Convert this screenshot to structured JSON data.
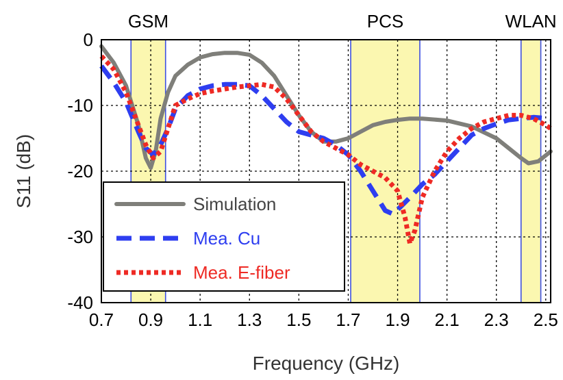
{
  "chart_data": {
    "type": "line",
    "title": "",
    "xlabel": "Frequency (GHz)",
    "ylabel": "S11 (dB)",
    "xlim": [
      0.7,
      2.52
    ],
    "ylim": [
      -40,
      0
    ],
    "grid": true,
    "x_ticks": [
      0.7,
      0.9,
      1.1,
      1.3,
      1.5,
      1.7,
      1.9,
      2.1,
      2.3,
      2.5
    ],
    "x_tick_labels": [
      "0.7",
      "0.9",
      "1.1",
      "1.3",
      "1.5",
      "1.7",
      "1.9",
      "2.1",
      "2.3",
      "2.5"
    ],
    "y_ticks": [
      0,
      -10,
      -20,
      -30,
      -40
    ],
    "y_tick_labels": [
      "0",
      "-10",
      "-20",
      "-30",
      "-40"
    ],
    "bands": [
      {
        "label": "GSM",
        "from": 0.82,
        "to": 0.96,
        "color": "#fbf7b0"
      },
      {
        "label": "PCS",
        "from": 1.71,
        "to": 1.99,
        "color": "#fbf7b0"
      },
      {
        "label": "WLAN",
        "from": 2.4,
        "to": 2.48,
        "color": "#fbf7b0"
      }
    ],
    "legend_position": "lower-left",
    "series": [
      {
        "name": "Simulation",
        "color": "#7f7f7a",
        "style": "solid",
        "points": [
          [
            0.7,
            -1
          ],
          [
            0.75,
            -3.5
          ],
          [
            0.8,
            -7
          ],
          [
            0.85,
            -13
          ],
          [
            0.88,
            -18
          ],
          [
            0.9,
            -19.5
          ],
          [
            0.92,
            -17
          ],
          [
            0.94,
            -12
          ],
          [
            0.97,
            -8
          ],
          [
            1.0,
            -5.5
          ],
          [
            1.05,
            -3.8
          ],
          [
            1.1,
            -2.7
          ],
          [
            1.15,
            -2.2
          ],
          [
            1.2,
            -2.0
          ],
          [
            1.25,
            -2.0
          ],
          [
            1.3,
            -2.3
          ],
          [
            1.35,
            -3.5
          ],
          [
            1.4,
            -5.5
          ],
          [
            1.45,
            -8.5
          ],
          [
            1.5,
            -11.5
          ],
          [
            1.55,
            -14
          ],
          [
            1.6,
            -15.5
          ],
          [
            1.65,
            -15.5
          ],
          [
            1.7,
            -15
          ],
          [
            1.75,
            -14
          ],
          [
            1.8,
            -13
          ],
          [
            1.85,
            -12.5
          ],
          [
            1.9,
            -12.2
          ],
          [
            1.95,
            -12
          ],
          [
            2.0,
            -12
          ],
          [
            2.1,
            -12.3
          ],
          [
            2.2,
            -13.2
          ],
          [
            2.3,
            -15
          ],
          [
            2.35,
            -16.5
          ],
          [
            2.4,
            -18
          ],
          [
            2.43,
            -18.8
          ],
          [
            2.47,
            -18.5
          ],
          [
            2.52,
            -17
          ]
        ]
      },
      {
        "name": "Mea. Cu",
        "color": "#2e3ef0",
        "style": "dashed",
        "points": [
          [
            0.7,
            -4
          ],
          [
            0.75,
            -6.5
          ],
          [
            0.8,
            -9.5
          ],
          [
            0.85,
            -14
          ],
          [
            0.88,
            -16.5
          ],
          [
            0.91,
            -17.5
          ],
          [
            0.94,
            -16
          ],
          [
            0.97,
            -13.5
          ],
          [
            1.0,
            -10.5
          ],
          [
            1.05,
            -8.5
          ],
          [
            1.1,
            -7.5
          ],
          [
            1.15,
            -7
          ],
          [
            1.2,
            -6.8
          ],
          [
            1.25,
            -6.8
          ],
          [
            1.3,
            -7
          ],
          [
            1.35,
            -8.5
          ],
          [
            1.4,
            -10.5
          ],
          [
            1.45,
            -12.5
          ],
          [
            1.5,
            -14
          ],
          [
            1.55,
            -14.5
          ],
          [
            1.6,
            -15
          ],
          [
            1.65,
            -16
          ],
          [
            1.7,
            -17.5
          ],
          [
            1.75,
            -20
          ],
          [
            1.8,
            -23
          ],
          [
            1.85,
            -26
          ],
          [
            1.88,
            -26.5
          ],
          [
            1.91,
            -25.5
          ],
          [
            1.95,
            -24
          ],
          [
            2.0,
            -22
          ],
          [
            2.05,
            -20.5
          ],
          [
            2.1,
            -18.5
          ],
          [
            2.15,
            -16.5
          ],
          [
            2.2,
            -14.5
          ],
          [
            2.25,
            -13.5
          ],
          [
            2.3,
            -12.8
          ],
          [
            2.35,
            -12.2
          ],
          [
            2.4,
            -12
          ],
          [
            2.45,
            -11.8
          ],
          [
            2.52,
            -12
          ]
        ]
      },
      {
        "name": "Mea. E-fiber",
        "color": "#ee2a24",
        "style": "dotted",
        "points": [
          [
            0.7,
            -2.5
          ],
          [
            0.75,
            -4.5
          ],
          [
            0.8,
            -8
          ],
          [
            0.85,
            -13
          ],
          [
            0.88,
            -16
          ],
          [
            0.91,
            -18
          ],
          [
            0.94,
            -17
          ],
          [
            0.97,
            -13.5
          ],
          [
            1.0,
            -10
          ],
          [
            1.05,
            -9
          ],
          [
            1.1,
            -8.2
          ],
          [
            1.15,
            -7.8
          ],
          [
            1.2,
            -7.5
          ],
          [
            1.25,
            -7.2
          ],
          [
            1.3,
            -7
          ],
          [
            1.35,
            -6.8
          ],
          [
            1.4,
            -7.2
          ],
          [
            1.45,
            -9
          ],
          [
            1.5,
            -11.5
          ],
          [
            1.55,
            -14
          ],
          [
            1.6,
            -15.5
          ],
          [
            1.65,
            -16.5
          ],
          [
            1.7,
            -17.5
          ],
          [
            1.75,
            -19
          ],
          [
            1.8,
            -20
          ],
          [
            1.85,
            -21
          ],
          [
            1.9,
            -23
          ],
          [
            1.93,
            -27
          ],
          [
            1.95,
            -31
          ],
          [
            1.97,
            -29
          ],
          [
            2.0,
            -24
          ],
          [
            2.05,
            -20
          ],
          [
            2.1,
            -17
          ],
          [
            2.15,
            -15
          ],
          [
            2.2,
            -13.5
          ],
          [
            2.25,
            -12.5
          ],
          [
            2.3,
            -12
          ],
          [
            2.35,
            -11.5
          ],
          [
            2.4,
            -11.5
          ],
          [
            2.45,
            -12
          ],
          [
            2.5,
            -13
          ],
          [
            2.52,
            -13.5
          ]
        ]
      }
    ]
  }
}
